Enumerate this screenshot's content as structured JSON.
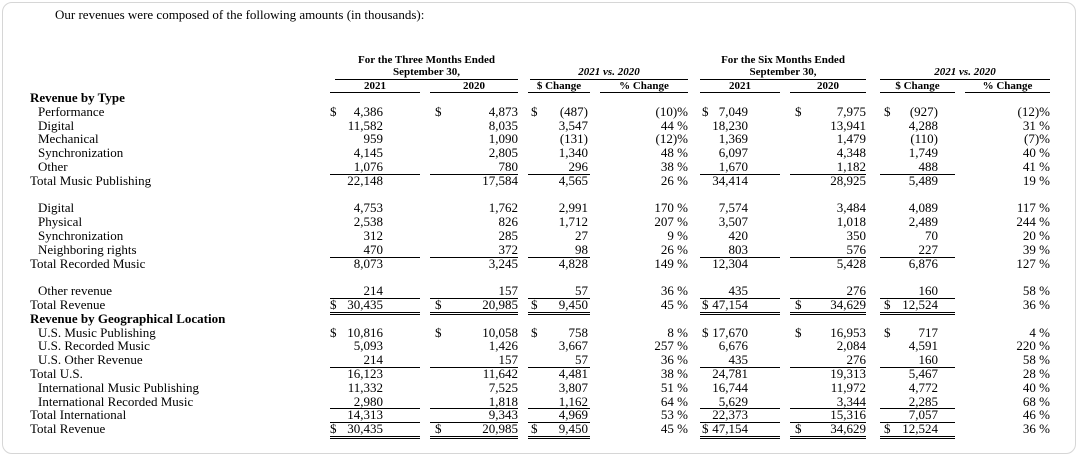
{
  "intro": "Our revenues were composed of the following amounts (in thousands):",
  "header": {
    "three_months": "For the Three Months Ended",
    "six_months": "For the Six Months Ended",
    "period": "September 30,",
    "comparison": "2021 vs. 2020",
    "columns": [
      "2021",
      "2020",
      "$ Change",
      "% Change",
      "2021",
      "2020",
      "$ Change",
      "% Change"
    ]
  },
  "sections": [
    {
      "heading": "Revenue by Type",
      "rows": [
        {
          "label": "Performance",
          "currency": "$",
          "values": [
            "4,386",
            "4,873",
            "(487)",
            "(10)%",
            "7,049",
            "7,975",
            "(927)",
            "(12)%"
          ]
        },
        {
          "label": "Digital",
          "values": [
            "11,582",
            "8,035",
            "3,547",
            "44 %",
            "18,230",
            "13,941",
            "4,288",
            "31 %"
          ]
        },
        {
          "label": "Mechanical",
          "values": [
            "959",
            "1,090",
            "(131)",
            "(12)%",
            "1,369",
            "1,479",
            "(110)",
            "(7)%"
          ]
        },
        {
          "label": "Synchronization",
          "values": [
            "4,145",
            "2,805",
            "1,340",
            "48 %",
            "6,097",
            "4,348",
            "1,749",
            "40 %"
          ]
        },
        {
          "label": "Other",
          "values": [
            "1,076",
            "780",
            "296",
            "38 %",
            "1,670",
            "1,182",
            "488",
            "41 %"
          ]
        },
        {
          "label": "Total Music Publishing",
          "values": [
            "22,148",
            "17,584",
            "4,565",
            "26 %",
            "34,414",
            "28,925",
            "5,489",
            "19 %"
          ]
        }
      ]
    },
    {
      "rows": [
        {
          "label": "Digital",
          "values": [
            "4,753",
            "1,762",
            "2,991",
            "170 %",
            "7,574",
            "3,484",
            "4,089",
            "117 %"
          ]
        },
        {
          "label": "Physical",
          "values": [
            "2,538",
            "826",
            "1,712",
            "207 %",
            "3,507",
            "1,018",
            "2,489",
            "244 %"
          ]
        },
        {
          "label": "Synchronization",
          "values": [
            "312",
            "285",
            "27",
            "9 %",
            "420",
            "350",
            "70",
            "20 %"
          ]
        },
        {
          "label": "Neighboring rights",
          "values": [
            "470",
            "372",
            "98",
            "26 %",
            "803",
            "576",
            "227",
            "39 %"
          ]
        },
        {
          "label": "Total Recorded Music",
          "values": [
            "8,073",
            "3,245",
            "4,828",
            "149 %",
            "12,304",
            "5,428",
            "6,876",
            "127 %"
          ]
        }
      ]
    },
    {
      "rows": [
        {
          "label": "Other revenue",
          "values": [
            "214",
            "157",
            "57",
            "36 %",
            "435",
            "276",
            "160",
            "58 %"
          ]
        },
        {
          "label": "Total Revenue",
          "currency": "$",
          "values": [
            "30,435",
            "20,985",
            "9,450",
            "45 %",
            "47,154",
            "34,629",
            "12,524",
            "36 %"
          ]
        }
      ]
    },
    {
      "heading": "Revenue by Geographical Location",
      "rows": [
        {
          "label": "U.S. Music Publishing",
          "currency": "$",
          "values": [
            "10,816",
            "10,058",
            "758",
            "8 %",
            "17,670",
            "16,953",
            "717",
            "4 %"
          ]
        },
        {
          "label": "U.S. Recorded Music",
          "values": [
            "5,093",
            "1,426",
            "3,667",
            "257 %",
            "6,676",
            "2,084",
            "4,591",
            "220 %"
          ]
        },
        {
          "label": "U.S. Other Revenue",
          "values": [
            "214",
            "157",
            "57",
            "36 %",
            "435",
            "276",
            "160",
            "58 %"
          ]
        },
        {
          "label": "Total U.S.",
          "values": [
            "16,123",
            "11,642",
            "4,481",
            "38 %",
            "24,781",
            "19,313",
            "5,467",
            "28 %"
          ]
        },
        {
          "label": "International Music Publishing",
          "values": [
            "11,332",
            "7,525",
            "3,807",
            "51 %",
            "16,744",
            "11,972",
            "4,772",
            "40 %"
          ]
        },
        {
          "label": "International Recorded Music",
          "values": [
            "2,980",
            "1,818",
            "1,162",
            "64 %",
            "5,629",
            "3,344",
            "2,285",
            "68 %"
          ]
        },
        {
          "label": "Total International",
          "values": [
            "14,313",
            "9,343",
            "4,969",
            "53 %",
            "22,373",
            "15,316",
            "7,057",
            "46 %"
          ]
        },
        {
          "label": "Total Revenue",
          "currency": "$",
          "values": [
            "30,435",
            "20,985",
            "9,450",
            "45 %",
            "47,154",
            "34,629",
            "12,524",
            "36 %"
          ]
        }
      ]
    }
  ]
}
